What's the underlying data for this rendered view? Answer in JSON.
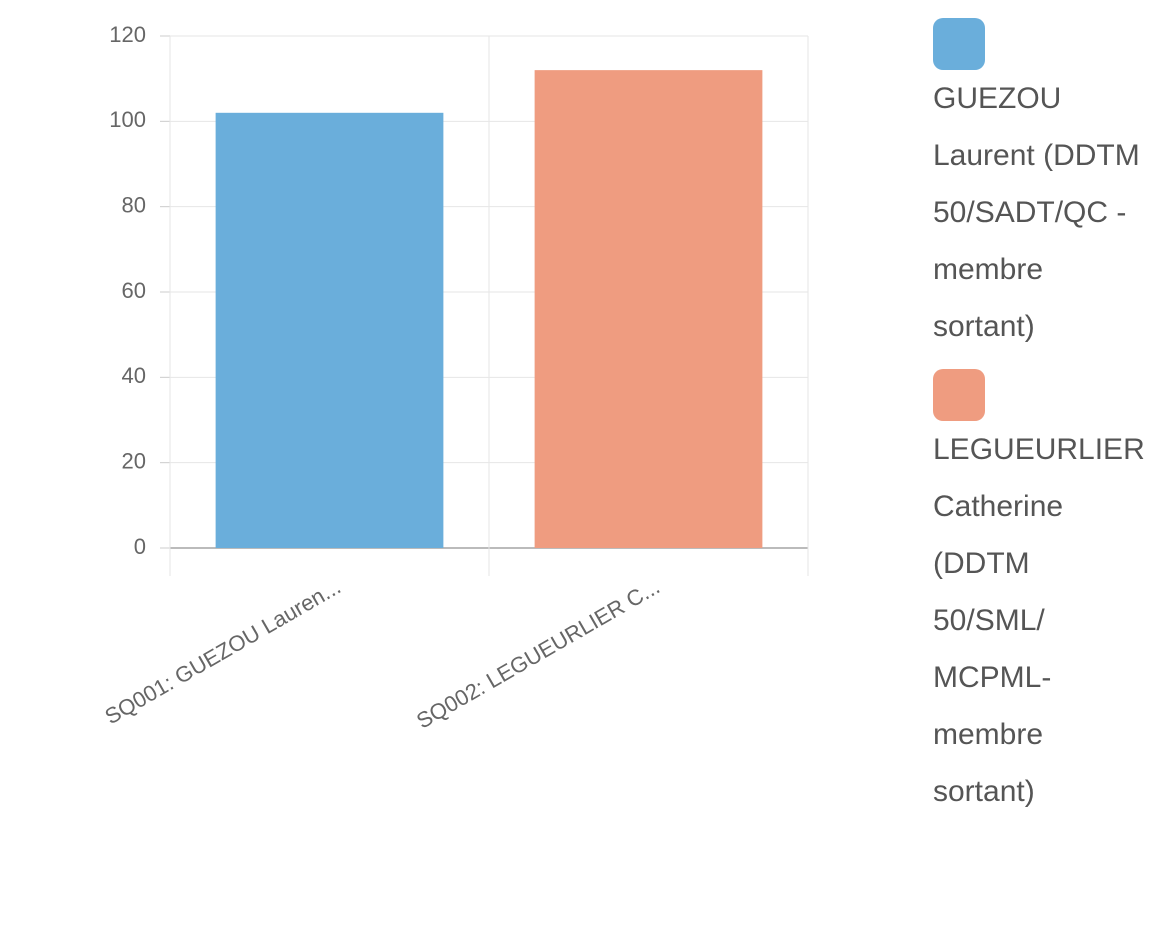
{
  "chart_data": {
    "type": "bar",
    "categories": [
      "SQ001: GUEZOU Lauren...",
      "SQ002: LEGUEURLIER C..."
    ],
    "values": [
      102,
      112
    ],
    "colors": [
      "#6aaedb",
      "#ef9c80"
    ],
    "legend": [
      "GUEZOU Laurent (DDTM 50/SADT/QC - membre sortant)",
      "LEGUEURLIER Catherine (DDTM 50/SML/ MCPML- membre sortant)"
    ],
    "ylim": [
      0,
      120
    ],
    "yticks": [
      0,
      20,
      40,
      60,
      80,
      100,
      120
    ],
    "grid": true
  }
}
